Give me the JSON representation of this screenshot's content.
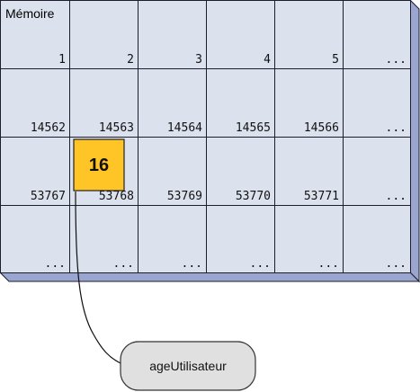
{
  "memory": {
    "title": "Mémoire",
    "rows": [
      [
        "1",
        "2",
        "3",
        "4",
        "5",
        "..."
      ],
      [
        "14562",
        "14563",
        "14564",
        "14565",
        "14566",
        "..."
      ],
      [
        "53767",
        "53768",
        "53769",
        "53770",
        "53771",
        "..."
      ],
      [
        "...",
        "...",
        "...",
        "...",
        "...",
        "..."
      ]
    ]
  },
  "stored_value": {
    "value": "16",
    "row": 2,
    "col": 1
  },
  "variable": {
    "name": "ageUtilisateur"
  },
  "colors": {
    "cell_fill": "#DCE1EE",
    "cell_border": "#1E1E2E",
    "shadow": "#9AA6D0",
    "value_fill": "#FFC425",
    "value_border": "#222222",
    "var_fill": "#E0E0E0"
  }
}
